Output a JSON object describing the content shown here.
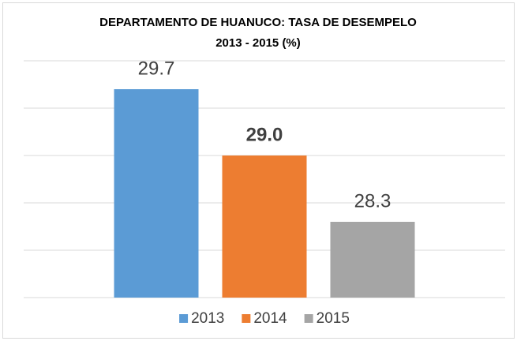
{
  "chart_data": {
    "type": "bar",
    "title": [
      "DEPARTAMENTO DE HUANUCO: TASA DE DESEMPELO",
      "2013 - 2015 (%)"
    ],
    "categories": [
      null
    ],
    "series": [
      {
        "name": "2013",
        "color": "#5b9bd5",
        "values": [
          29.7
        ],
        "value_labels": [
          "29.7"
        ]
      },
      {
        "name": "2014",
        "color": "#ed7d31",
        "values": [
          29.0
        ],
        "value_labels": [
          "29.0"
        ]
      },
      {
        "name": "2015",
        "color": "#a5a5a5",
        "values": [
          28.3
        ],
        "value_labels": [
          "28.3"
        ]
      }
    ],
    "ylim": [
      27.5,
      30.0
    ],
    "yticks": [
      27.5,
      28,
      28.5,
      29,
      29.5,
      30
    ],
    "grid": true,
    "legend": "bottom"
  }
}
